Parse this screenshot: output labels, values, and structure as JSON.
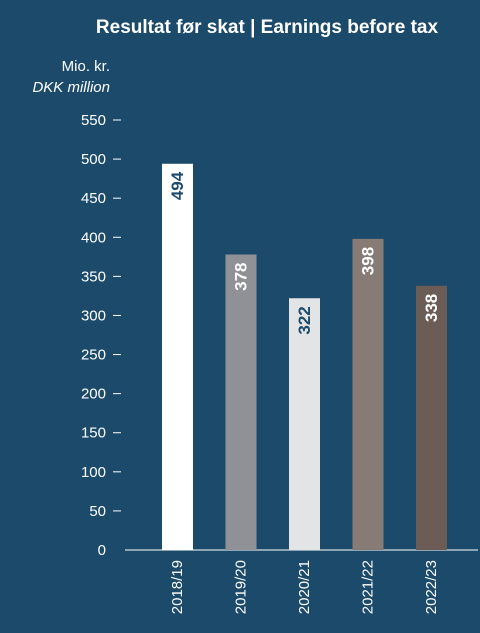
{
  "chart_data": {
    "type": "bar",
    "title": "Resultat før skat | Earnings before tax",
    "ylabel_line1": "Mio. kr.",
    "ylabel_line2": "DKK million",
    "ylim": [
      0,
      550
    ],
    "yticks": [
      0,
      50,
      100,
      150,
      200,
      250,
      300,
      350,
      400,
      450,
      500,
      550
    ],
    "categories": [
      "2018/19",
      "2019/20",
      "2020/21",
      "2021/22",
      "2022/23"
    ],
    "values": [
      494,
      378,
      322,
      398,
      338
    ],
    "value_labels": [
      "494",
      "378",
      "322",
      "398",
      "338"
    ],
    "bar_colors": [
      "#ffffff",
      "#8f9196",
      "#e3e4e6",
      "#877b76",
      "#6b5d56"
    ],
    "label_colors": [
      "#1b4a6b",
      "#ffffff",
      "#1b4a6b",
      "#ffffff",
      "#ffffff"
    ],
    "grid": false,
    "background_color": "#1b4a6b"
  }
}
